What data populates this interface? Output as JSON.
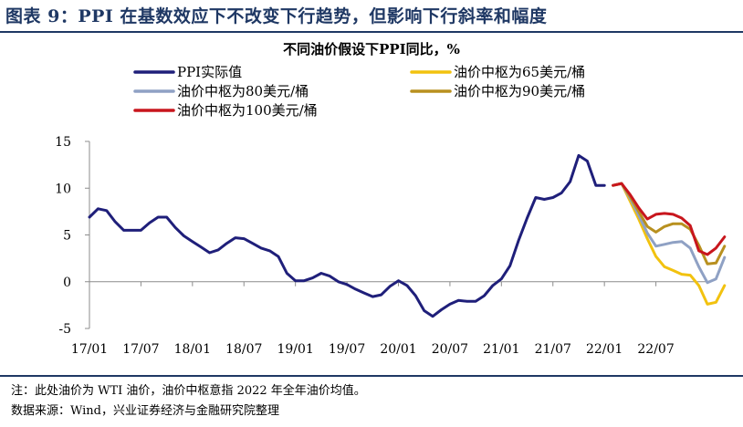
{
  "figure": {
    "title": "图表 9：PPI 在基数效应下不改变下行趋势，但影响下行斜率和幅度"
  },
  "notes": {
    "note": "注：此处油价为 WTI 油价，油价中枢意指 2022 年全年油价均值。",
    "source": "数据来源：Wind，兴业证券经济与金融研究院整理"
  },
  "chart_data": {
    "type": "line",
    "title": "不同油价假设下PPI同比，%",
    "xlabel": "",
    "ylabel": "",
    "ylim": [
      -5,
      15
    ],
    "yticks": [
      -5,
      0,
      5,
      10,
      15
    ],
    "xticks": [
      "17/01",
      "17/07",
      "18/01",
      "18/07",
      "19/01",
      "19/07",
      "20/01",
      "20/07",
      "21/01",
      "21/07",
      "22/01",
      "22/07"
    ],
    "grid": false,
    "legend_position": "top",
    "series": [
      {
        "name": "PPI实际值",
        "color": "#1f1f7a",
        "start": "2017-01",
        "values": [
          6.9,
          7.8,
          7.6,
          6.4,
          5.5,
          5.5,
          5.5,
          6.3,
          6.9,
          6.9,
          5.8,
          4.9,
          4.3,
          3.7,
          3.1,
          3.4,
          4.1,
          4.7,
          4.6,
          4.1,
          3.6,
          3.3,
          2.7,
          0.9,
          0.1,
          0.1,
          0.4,
          0.9,
          0.6,
          0.0,
          -0.3,
          -0.8,
          -1.2,
          -1.6,
          -1.4,
          -0.5,
          0.1,
          -0.4,
          -1.5,
          -3.1,
          -3.7,
          -3.0,
          -2.4,
          -2.0,
          -2.1,
          -2.1,
          -1.5,
          -0.4,
          0.3,
          1.7,
          4.4,
          6.8,
          9.0,
          8.8,
          9.0,
          9.5,
          10.7,
          13.5,
          12.9,
          10.3,
          10.3
        ]
      },
      {
        "name": "油价中枢为65美元/桶",
        "color": "#f2c20f",
        "start": "2022-02",
        "values": [
          10.3,
          10.5,
          8.6,
          6.7,
          4.6,
          2.7,
          1.6,
          1.2,
          0.8,
          0.7,
          -0.4,
          -2.4,
          -2.2,
          -0.4
        ]
      },
      {
        "name": "油价中枢为80美元/桶",
        "color": "#8fa1c4",
        "start": "2022-02",
        "values": [
          10.3,
          10.5,
          8.9,
          7.1,
          5.2,
          3.8,
          4.0,
          4.2,
          4.3,
          3.6,
          1.6,
          -0.1,
          0.3,
          2.6
        ]
      },
      {
        "name": "油价中枢为90美元/桶",
        "color": "#b8901f",
        "start": "2022-02",
        "values": [
          10.3,
          10.5,
          9.1,
          7.5,
          5.9,
          5.3,
          5.9,
          6.2,
          6.2,
          5.6,
          3.9,
          1.9,
          2.0,
          3.8
        ]
      },
      {
        "name": "油价中枢为100美元/桶",
        "color": "#c8161d",
        "start": "2022-02",
        "values": [
          10.3,
          10.5,
          9.3,
          7.9,
          6.7,
          7.2,
          7.3,
          7.2,
          6.8,
          6.0,
          3.3,
          2.9,
          3.6,
          4.8
        ]
      }
    ]
  }
}
